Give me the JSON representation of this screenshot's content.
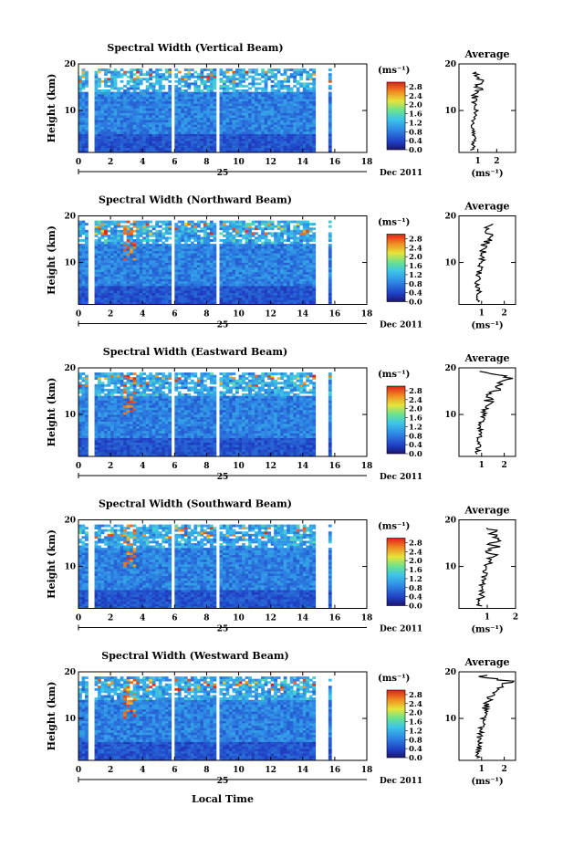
{
  "figure": {
    "date_label": "Dec 2011",
    "day_label": "25",
    "xlabel": "Local Time",
    "ylabel": "Height (km)",
    "colorbar_unit": "(ms⁻¹)",
    "colorbar_ticks": [
      "0.0",
      "0.4",
      "0.8",
      "1.2",
      "1.6",
      "2.0",
      "2.4",
      "2.8"
    ],
    "colors": {
      "low": "#1a2f9a",
      "mid": "#3aa0e6",
      "high": "#e8261a"
    }
  },
  "chart_data": [
    {
      "type": "heatmap",
      "title": "Spectral Width (Vertical Beam)",
      "xlabel": "",
      "ylabel": "Height (km)",
      "x_ticks": [
        "0",
        "2",
        "4",
        "6",
        "8",
        "10",
        "12",
        "14",
        "16",
        "18"
      ],
      "y_ticks": [
        "10",
        "20"
      ],
      "xlim": [
        0,
        18
      ],
      "ylim": [
        1,
        20
      ],
      "colorbar_range": [
        0,
        3.0
      ],
      "data_gaps_hours": [
        [
          0.7,
          0.95
        ],
        [
          5.7,
          6.05
        ],
        [
          8.6,
          8.9
        ],
        [
          14.8,
          15.7
        ]
      ],
      "average": {
        "title": "Average",
        "xlabel": "(ms⁻¹)",
        "x_ticks": [
          "1",
          "2"
        ],
        "y_ticks": [
          "10",
          "20"
        ],
        "xlim": [
          0,
          3
        ],
        "heights": [
          2,
          4,
          6,
          8,
          10,
          12,
          14,
          16,
          18
        ],
        "values": [
          0.7,
          0.9,
          0.7,
          0.8,
          0.9,
          0.8,
          1.0,
          1.1,
          1.0
        ]
      }
    },
    {
      "type": "heatmap",
      "title": "Spectral Width (Northward Beam)",
      "xlabel": "",
      "ylabel": "Height (km)",
      "x_ticks": [
        "0",
        "2",
        "4",
        "6",
        "8",
        "10",
        "12",
        "14",
        "16",
        "18"
      ],
      "y_ticks": [
        "10",
        "20"
      ],
      "xlim": [
        0,
        18
      ],
      "ylim": [
        1,
        20
      ],
      "colorbar_range": [
        0,
        3.0
      ],
      "data_gaps_hours": [
        [
          0.7,
          0.95
        ],
        [
          5.7,
          6.05
        ],
        [
          8.6,
          8.9
        ],
        [
          14.8,
          15.7
        ]
      ],
      "average": {
        "title": "Average",
        "xlabel": "(ms⁻¹)",
        "x_ticks": [
          "1",
          "2"
        ],
        "y_ticks": [
          "10",
          "20"
        ],
        "xlim": [
          0,
          2.5
        ],
        "heights": [
          2,
          4,
          6,
          8,
          10,
          12,
          14,
          16,
          18
        ],
        "values": [
          0.8,
          0.9,
          0.8,
          0.9,
          1.0,
          1.1,
          1.2,
          1.4,
          1.3
        ]
      }
    },
    {
      "type": "heatmap",
      "title": "Spectral Width (Eastward Beam)",
      "xlabel": "",
      "ylabel": "Height (km)",
      "x_ticks": [
        "0",
        "2",
        "4",
        "6",
        "8",
        "10",
        "12",
        "14",
        "16",
        "18"
      ],
      "y_ticks": [
        "10",
        "20"
      ],
      "xlim": [
        0,
        18
      ],
      "ylim": [
        1,
        20
      ],
      "colorbar_range": [
        0,
        3.0
      ],
      "data_gaps_hours": [
        [
          0.7,
          0.95
        ],
        [
          5.7,
          6.05
        ],
        [
          8.6,
          8.9
        ],
        [
          14.8,
          15.7
        ]
      ],
      "average": {
        "title": "Average",
        "xlabel": "",
        "x_ticks": [
          "1",
          "2"
        ],
        "y_ticks": [
          "10",
          "20"
        ],
        "xlim": [
          0,
          2.5
        ],
        "heights": [
          2,
          4,
          6,
          8,
          10,
          12,
          14,
          16,
          18,
          19
        ],
        "values": [
          0.8,
          0.9,
          0.9,
          1.0,
          1.1,
          1.2,
          1.4,
          1.8,
          2.2,
          1.0
        ]
      }
    },
    {
      "type": "heatmap",
      "title": "Spectral Width (Southward Beam)",
      "xlabel": "",
      "ylabel": "Height (km)",
      "x_ticks": [
        "0",
        "2",
        "4",
        "6",
        "8",
        "10",
        "12",
        "14",
        "16",
        "18"
      ],
      "y_ticks": [
        "10",
        "20"
      ],
      "xlim": [
        0,
        18
      ],
      "ylim": [
        1,
        20
      ],
      "colorbar_range": [
        0,
        3.0
      ],
      "data_gaps_hours": [
        [
          0.7,
          0.95
        ],
        [
          5.7,
          6.05
        ],
        [
          8.6,
          8.9
        ],
        [
          14.8,
          15.7
        ]
      ],
      "average": {
        "title": "Average",
        "xlabel": "(ms⁻¹)",
        "x_ticks": [
          "1",
          "2"
        ],
        "y_ticks": [
          "10",
          "20"
        ],
        "xlim": [
          0,
          2
        ],
        "heights": [
          2,
          4,
          6,
          8,
          10,
          12,
          14,
          16,
          18
        ],
        "values": [
          0.7,
          0.8,
          0.8,
          0.9,
          1.0,
          1.1,
          1.2,
          1.3,
          1.2
        ]
      }
    },
    {
      "type": "heatmap",
      "title": "Spectral Width (Westward Beam)",
      "xlabel": "Local Time",
      "ylabel": "Height (km)",
      "x_ticks": [
        "0",
        "2",
        "4",
        "6",
        "8",
        "10",
        "12",
        "14",
        "16",
        "18"
      ],
      "y_ticks": [
        "10",
        "20"
      ],
      "xlim": [
        0,
        18
      ],
      "ylim": [
        1,
        20
      ],
      "colorbar_range": [
        0,
        3.0
      ],
      "data_gaps_hours": [
        [
          0.7,
          0.95
        ],
        [
          5.7,
          6.05
        ],
        [
          8.6,
          8.9
        ],
        [
          14.8,
          15.7
        ]
      ],
      "average": {
        "title": "Average",
        "xlabel": "(ms⁻¹)",
        "x_ticks": [
          "1",
          "2"
        ],
        "y_ticks": [
          "10",
          "20"
        ],
        "xlim": [
          0,
          2.5
        ],
        "heights": [
          2,
          4,
          6,
          8,
          10,
          12,
          14,
          16,
          18,
          19
        ],
        "values": [
          0.8,
          0.9,
          0.9,
          1.0,
          1.1,
          1.2,
          1.3,
          1.6,
          2.2,
          1.1
        ]
      }
    }
  ]
}
